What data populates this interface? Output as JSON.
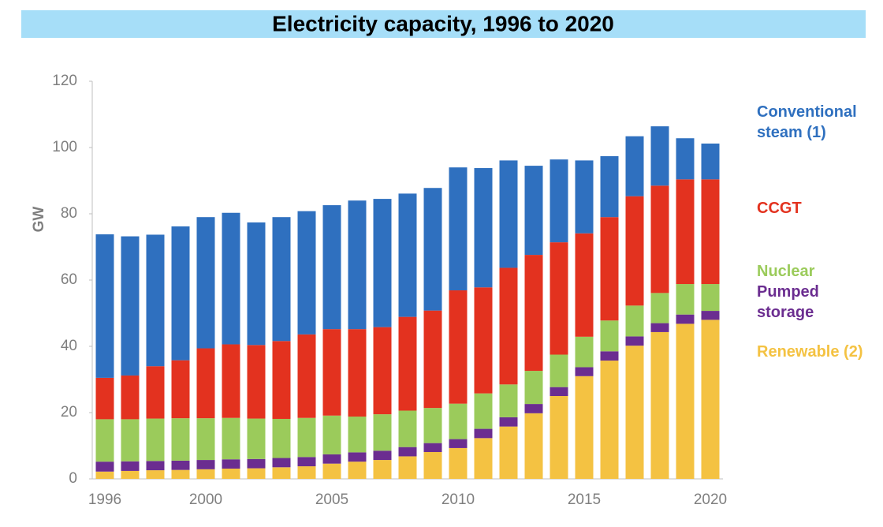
{
  "chart_data": {
    "type": "stacked-bar",
    "title": "Electricity capacity, 1996 to 2020",
    "y_label": "GW",
    "categories": [
      "1996",
      null,
      null,
      null,
      "2000",
      null,
      null,
      null,
      null,
      "2005",
      null,
      null,
      null,
      null,
      "2010",
      null,
      null,
      null,
      null,
      "2015",
      null,
      null,
      null,
      null,
      "2020"
    ],
    "series": [
      {
        "name": "Renewable (2)",
        "color": "#f4c242",
        "values": [
          2.2,
          2.4,
          2.6,
          2.7,
          2.9,
          3.1,
          3.2,
          3.5,
          3.8,
          4.6,
          5.2,
          5.7,
          6.8,
          8.1,
          9.3,
          12.3,
          15.8,
          19.8,
          25.0,
          31.0,
          35.7,
          40.2,
          44.3,
          46.8,
          48.0
        ]
      },
      {
        "name": "Pumped storage",
        "color": "#6b2d90",
        "values": [
          3.0,
          2.9,
          2.8,
          2.8,
          2.8,
          2.8,
          2.8,
          2.8,
          2.8,
          2.8,
          2.8,
          2.8,
          2.8,
          2.7,
          2.7,
          2.8,
          2.8,
          2.8,
          2.7,
          2.7,
          2.8,
          2.8,
          2.7,
          2.8,
          2.7
        ]
      },
      {
        "name": "Nuclear",
        "color": "#9bcb5b",
        "values": [
          12.8,
          12.7,
          12.8,
          12.8,
          12.6,
          12.5,
          12.2,
          11.8,
          11.8,
          11.7,
          10.8,
          11.0,
          11.0,
          10.6,
          10.7,
          10.7,
          9.9,
          10.0,
          9.8,
          9.2,
          9.3,
          9.3,
          9.1,
          9.2,
          8.1
        ]
      },
      {
        "name": "CCGT",
        "color": "#e3321f",
        "values": [
          12.5,
          13.2,
          15.8,
          17.5,
          21.1,
          22.2,
          22.2,
          23.5,
          25.2,
          26.1,
          26.4,
          26.3,
          28.3,
          29.4,
          34.2,
          32.0,
          35.2,
          35.0,
          33.9,
          31.2,
          31.2,
          33.0,
          32.4,
          31.6,
          31.6
        ]
      },
      {
        "name": "Conventional steam (1)",
        "color": "#2f70bf",
        "values": [
          43.3,
          42.0,
          39.7,
          40.4,
          39.6,
          39.7,
          37.0,
          37.4,
          37.2,
          37.4,
          38.8,
          38.7,
          37.2,
          37.0,
          37.1,
          36.0,
          32.4,
          26.9,
          25.0,
          22.0,
          18.4,
          18.1,
          17.9,
          12.4,
          10.8
        ]
      }
    ],
    "ylim": [
      0,
      120
    ],
    "yticks": [
      0,
      20,
      40,
      60,
      80,
      100,
      120
    ],
    "grid": false
  }
}
